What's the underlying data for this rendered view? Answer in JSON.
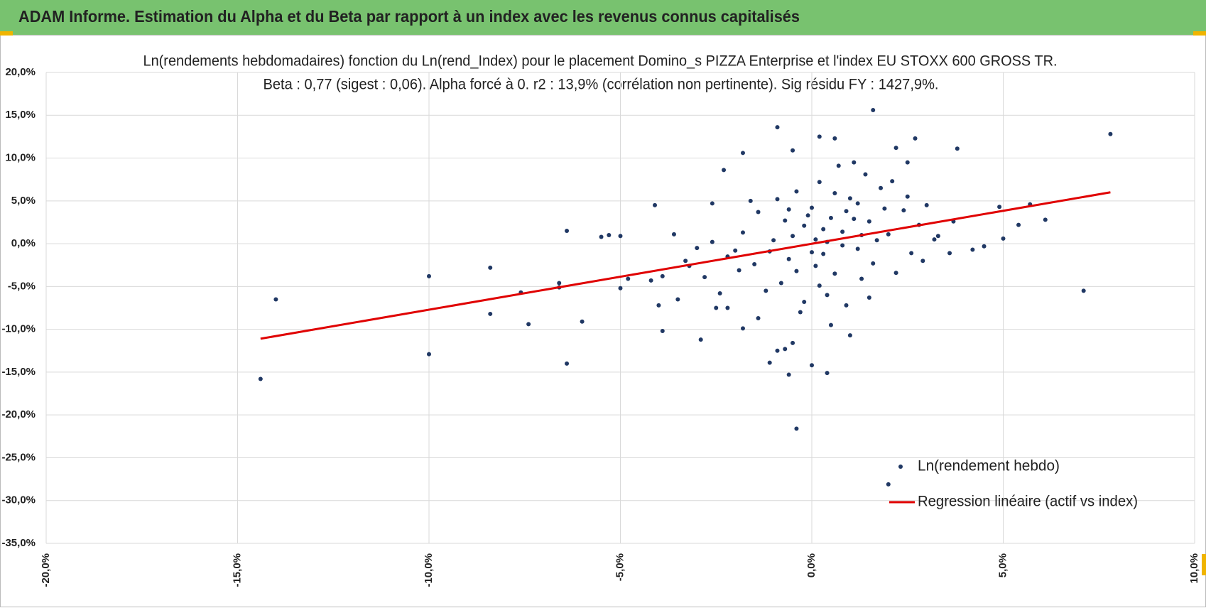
{
  "header": {
    "title": "ADAM Informe. Estimation du Alpha et du Beta par rapport à un index avec les revenus connus capitalisés"
  },
  "chart_data": {
    "type": "scatter",
    "title": "Ln(rendements hebdomadaires) fonction du Ln(rend_Index) pour le placement Domino_s PIZZA Enterprise et l'index EU STOXX 600 GROSS TR.",
    "subtitle": "Beta : 0,77 (sigest : 0,06).  Alpha forcé à 0. r2 : 13,9% (corrélation non pertinente). Sig résidu FY : 1427,9%.",
    "xlim": [
      -20,
      10
    ],
    "xticks": [
      {
        "value": -20,
        "label": "-20,0%"
      },
      {
        "value": -15,
        "label": "-15,0%"
      },
      {
        "value": -10,
        "label": "-10,0%"
      },
      {
        "value": -5,
        "label": "-5,0%"
      },
      {
        "value": 0,
        "label": "0,0%"
      },
      {
        "value": 5,
        "label": "5,0%"
      },
      {
        "value": 10,
        "label": "10,0%"
      }
    ],
    "ylim": [
      -35,
      20
    ],
    "yticks": [
      {
        "value": 20,
        "label": "20,0%"
      },
      {
        "value": 15,
        "label": "15,0%"
      },
      {
        "value": 10,
        "label": "10,0%"
      },
      {
        "value": 5,
        "label": "5,0%"
      },
      {
        "value": 0,
        "label": "0,0%"
      },
      {
        "value": -5,
        "label": "-5,0%"
      },
      {
        "value": -10,
        "label": "-10,0%"
      },
      {
        "value": -15,
        "label": "-15,0%"
      },
      {
        "value": -20,
        "label": "-20,0%"
      },
      {
        "value": -25,
        "label": "-25,0%"
      },
      {
        "value": -30,
        "label": "-30,0%"
      },
      {
        "value": -35,
        "label": "-35,0%"
      }
    ],
    "grid": true,
    "legend": "lower right",
    "series": [
      {
        "name": "Ln(rendement hebdo)",
        "color": "#203864",
        "mode": "markers",
        "x": [
          -14.4,
          -14.0,
          -10.0,
          -10.0,
          -8.4,
          -8.4,
          -7.6,
          -7.4,
          -6.6,
          -6.6,
          -6.4,
          -6.4,
          -6.0,
          -5.3,
          -5.5,
          -5.0,
          -5.0,
          -4.1,
          -4.0,
          -3.9,
          -2.9,
          -2.3,
          -1.8,
          -0.9,
          -0.5,
          0.2,
          0.6,
          1.1,
          1.6,
          2.2,
          2.7,
          2.5,
          3.8,
          7.8,
          7.1,
          6.1,
          5.7,
          -0.4,
          2.0,
          -0.6,
          0.0,
          0.4,
          -1.1,
          -0.9,
          -0.7,
          -0.5,
          -1.8,
          -1.4,
          -3.5,
          -2.5,
          -2.2,
          4.2,
          4.5,
          5.0,
          5.4,
          4.9,
          3.6,
          3.2,
          -2.6,
          -3.9,
          -4.2,
          -4.8,
          -3.3,
          -3.0,
          -2.0,
          0.1,
          0.3,
          -0.2,
          0.5,
          0.8,
          1.2,
          -0.6,
          -1.0,
          1.5,
          2.0,
          -1.5,
          0.0,
          0.6,
          1.0,
          -0.4,
          0.2,
          1.8,
          2.4,
          2.8,
          -1.8,
          -2.2,
          -0.8,
          0.4,
          1.3,
          -1.2,
          0.9,
          -0.3,
          1.6,
          2.2,
          -2.6,
          3.0,
          1.4,
          0.7,
          -0.1,
          0.3,
          -0.5,
          0.8,
          1.1,
          -1.4,
          -0.9,
          2.6,
          3.3,
          -3.2,
          -2.8,
          -1.9,
          0.5,
          1.0,
          -0.2,
          1.9,
          0.1,
          -0.7,
          0.6,
          2.1,
          -1.1,
          1.7,
          0.2,
          -0.4,
          1.3,
          0.9,
          -1.6,
          2.5,
          3.7,
          -3.6,
          -2.4,
          1.5,
          0.0,
          0.4,
          1.2,
          -0.6,
          2.9
        ],
        "values": [
          -15.8,
          -6.5,
          -3.8,
          -12.9,
          -2.8,
          -8.2,
          -5.7,
          -9.4,
          -4.6,
          -5.1,
          1.5,
          -14.0,
          -9.1,
          1.0,
          0.8,
          0.9,
          -5.2,
          4.5,
          -7.2,
          -10.2,
          -11.2,
          8.6,
          10.6,
          13.6,
          10.9,
          12.5,
          12.3,
          9.5,
          15.6,
          11.2,
          12.3,
          9.5,
          11.1,
          12.8,
          -5.5,
          2.8,
          4.6,
          -21.6,
          -28.1,
          -15.3,
          -14.2,
          -15.1,
          -13.9,
          -12.5,
          -12.3,
          -11.6,
          -9.9,
          -8.7,
          -6.5,
          -7.5,
          -7.5,
          -0.7,
          -0.3,
          0.6,
          2.2,
          4.3,
          -1.1,
          0.5,
          4.7,
          -3.8,
          -4.3,
          -4.1,
          -2.0,
          -0.5,
          -0.8,
          0.5,
          -1.2,
          2.1,
          3.0,
          1.4,
          -0.6,
          -1.8,
          0.4,
          2.6,
          1.1,
          -2.4,
          4.2,
          -3.5,
          5.3,
          6.1,
          7.2,
          6.5,
          3.9,
          2.2,
          1.3,
          -1.5,
          -4.6,
          -6.0,
          -4.1,
          -5.5,
          -7.2,
          -8.0,
          -2.3,
          -3.4,
          0.2,
          4.5,
          8.1,
          9.1,
          3.3,
          1.7,
          0.9,
          -0.2,
          2.9,
          3.7,
          5.2,
          -1.1,
          0.9,
          -2.6,
          -3.9,
          -3.1,
          -9.5,
          -10.7,
          -6.8,
          4.1,
          -2.6,
          2.7,
          5.9,
          7.3,
          -0.9,
          0.4,
          -4.9,
          -3.2,
          1.0,
          3.8,
          5.0,
          5.5,
          2.6,
          1.1,
          -5.8,
          -6.3,
          -1.0,
          0.2,
          4.7,
          4.0,
          -2.0
        ]
      },
      {
        "name": "Regression linéaire (actif vs index)",
        "color": "#e00000",
        "mode": "line",
        "x": [
          -14.4,
          7.8
        ],
        "values": [
          -11.1,
          6.0
        ]
      }
    ]
  }
}
